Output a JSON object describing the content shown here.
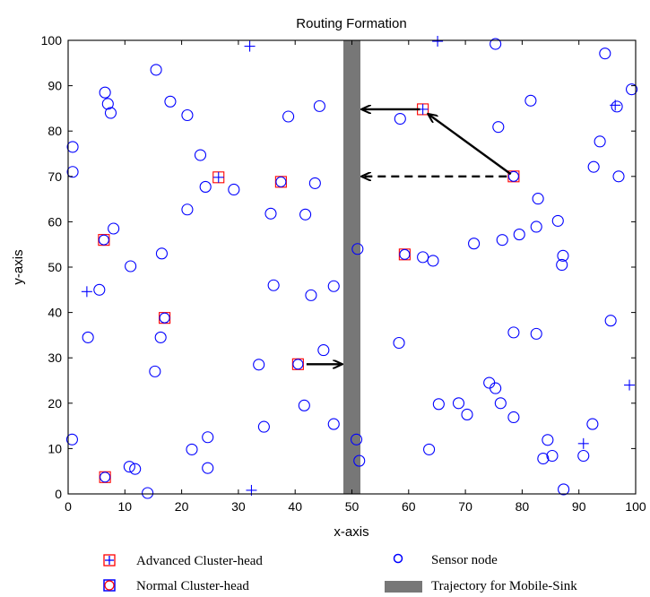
{
  "chart_data": {
    "type": "scatter",
    "title": "Routing Formation",
    "xlabel": "x-axis",
    "ylabel": "y-axis",
    "xlim": [
      0,
      100
    ],
    "ylim": [
      0,
      100
    ],
    "xticks": [
      0,
      10,
      20,
      30,
      40,
      50,
      60,
      70,
      80,
      90,
      100
    ],
    "yticks": [
      0,
      10,
      20,
      30,
      40,
      50,
      60,
      70,
      80,
      90,
      100
    ],
    "grid": false,
    "legend_position": "bottom",
    "legend": {
      "advanced": "Advanced Cluster-head",
      "normal": "Normal Cluster-head",
      "sensor": "Sensor node",
      "trajectory": "Trajectory for Mobile-Sink"
    },
    "colors": {
      "sensor": "#0000ff",
      "cluster_head": "#ff0000",
      "trajectory": "#777777",
      "arrow": "#000000"
    },
    "trajectory": {
      "x_from": 48.5,
      "x_to": 51.5
    },
    "sensor_nodes": [
      [
        0.8,
        76.5
      ],
      [
        0.8,
        71
      ],
      [
        0.7,
        12
      ],
      [
        3.5,
        34.5
      ],
      [
        5.5,
        45
      ],
      [
        6.5,
        88.5
      ],
      [
        7,
        86
      ],
      [
        7.5,
        84
      ],
      [
        8,
        58.5
      ],
      [
        11,
        50.2
      ],
      [
        10.8,
        6
      ],
      [
        11.8,
        5.5
      ],
      [
        14,
        0.2
      ],
      [
        15.5,
        93.5
      ],
      [
        15.3,
        27
      ],
      [
        16.5,
        53
      ],
      [
        16.3,
        34.5
      ],
      [
        18,
        86.5
      ],
      [
        21,
        83.5
      ],
      [
        21,
        62.7
      ],
      [
        21.8,
        9.8
      ],
      [
        23.3,
        74.7
      ],
      [
        24.2,
        67.7
      ],
      [
        24.6,
        12.5
      ],
      [
        24.6,
        5.7
      ],
      [
        29.2,
        67.1
      ],
      [
        33.6,
        28.5
      ],
      [
        34.5,
        14.8
      ],
      [
        35.7,
        61.8
      ],
      [
        36.2,
        46
      ],
      [
        38.8,
        83.2
      ],
      [
        41.8,
        61.6
      ],
      [
        41.6,
        19.5
      ],
      [
        42.8,
        43.8
      ],
      [
        43.5,
        68.5
      ],
      [
        44.3,
        85.5
      ],
      [
        45,
        31.7
      ],
      [
        46.8,
        45.8
      ],
      [
        46.8,
        15.4
      ],
      [
        51,
        54
      ],
      [
        51.3,
        7.3
      ],
      [
        50.8,
        12
      ],
      [
        58.5,
        82.7
      ],
      [
        58.3,
        33.3
      ],
      [
        62.5,
        52.2
      ],
      [
        64.3,
        51.4
      ],
      [
        63.6,
        9.8
      ],
      [
        65.3,
        19.8
      ],
      [
        68.8,
        20
      ],
      [
        70.3,
        17.5
      ],
      [
        71.5,
        55.2
      ],
      [
        74.2,
        24.5
      ],
      [
        75.3,
        99.2
      ],
      [
        75.3,
        23.3
      ],
      [
        75.8,
        80.9
      ],
      [
        76.2,
        20
      ],
      [
        76.5,
        56
      ],
      [
        78.5,
        35.6
      ],
      [
        78.5,
        16.9
      ],
      [
        79.5,
        57.2
      ],
      [
        81.5,
        86.7
      ],
      [
        82.5,
        58.9
      ],
      [
        82.5,
        35.3
      ],
      [
        82.8,
        65.1
      ],
      [
        83.7,
        7.8
      ],
      [
        84.5,
        11.9
      ],
      [
        85.3,
        8.4
      ],
      [
        86.3,
        60.2
      ],
      [
        87,
        50.5
      ],
      [
        87.2,
        52.5
      ],
      [
        87.3,
        1
      ],
      [
        90.8,
        8.4
      ],
      [
        92.4,
        15.4
      ],
      [
        92.6,
        72.1
      ],
      [
        93.7,
        77.7
      ],
      [
        94.6,
        97.1
      ],
      [
        95.6,
        38.2
      ],
      [
        96.7,
        85.4
      ],
      [
        97,
        70
      ],
      [
        99.3,
        89.2
      ]
    ],
    "advanced_cluster_heads": [
      [
        26.5,
        69.8
      ],
      [
        62.5,
        84.8
      ]
    ],
    "normal_cluster_heads": [
      [
        6.3,
        56
      ],
      [
        6.5,
        3.7
      ],
      [
        17,
        38.8
      ],
      [
        37.5,
        68.8
      ],
      [
        40.5,
        28.6
      ],
      [
        59.3,
        52.8
      ],
      [
        78.5,
        70
      ]
    ],
    "dead_nodes": [
      [
        32,
        98.7
      ],
      [
        3.3,
        44.6
      ],
      [
        32.3,
        0.8
      ],
      [
        65.1,
        99.8
      ],
      [
        96.4,
        85.7
      ],
      [
        98.9,
        24
      ],
      [
        90.8,
        11.1
      ]
    ],
    "arrows": [
      {
        "from": [
          78,
          70.5
        ],
        "to": [
          63.5,
          83.7
        ],
        "style": "solid"
      },
      {
        "from": [
          62,
          84.8
        ],
        "to": [
          51.8,
          84.8
        ],
        "style": "solid"
      },
      {
        "from": [
          77.3,
          70
        ],
        "to": [
          51.8,
          70
        ],
        "style": "dashed"
      },
      {
        "from": [
          42,
          28.6
        ],
        "to": [
          48.2,
          28.6
        ],
        "style": "solid"
      }
    ]
  }
}
